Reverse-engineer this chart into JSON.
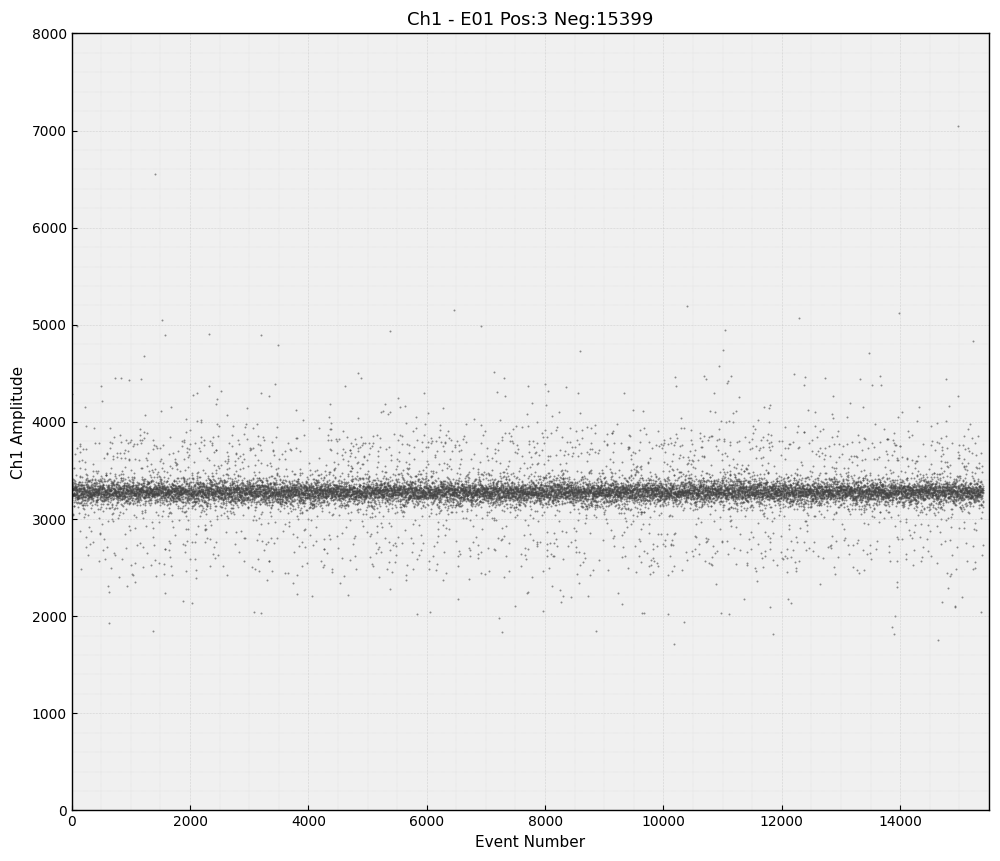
{
  "title": "Ch1 - E01 Pos:3 Neg:15399",
  "xlabel": "Event Number",
  "ylabel": "Ch1 Amplitude",
  "xlim": [
    0,
    15500
  ],
  "ylim": [
    0,
    8000
  ],
  "xticks": [
    0,
    2000,
    4000,
    6000,
    8000,
    10000,
    12000,
    14000
  ],
  "yticks": [
    0,
    1000,
    2000,
    3000,
    4000,
    5000,
    6000,
    7000,
    8000
  ],
  "n_points": 15402,
  "main_cluster_mean": 3280,
  "main_cluster_std_tight": 45,
  "main_cluster_std_mid": 90,
  "main_cluster_std_wide": 160,
  "scatter_color": "#444444",
  "background_color": "#f0f0f0",
  "grid_color": "#aaaaaa",
  "title_fontsize": 13,
  "label_fontsize": 11,
  "tick_fontsize": 10,
  "marker_size": 2.0,
  "marker_alpha": 0.6,
  "seed": 42
}
